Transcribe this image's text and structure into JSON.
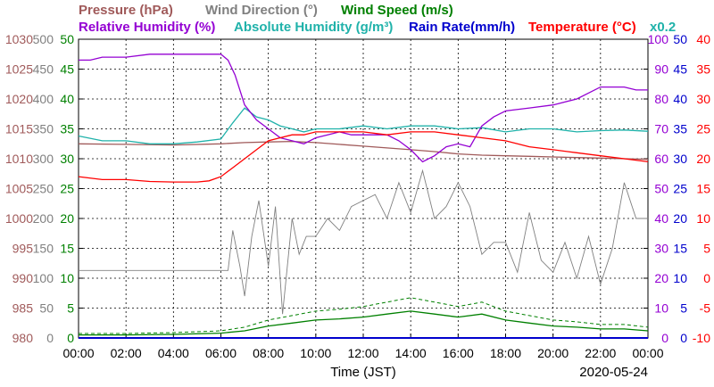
{
  "colors": {
    "pressure": "#a05a5a",
    "wind_direction": "#808080",
    "wind_speed": "#008000",
    "relative_humidity": "#9400d3",
    "absolute_humidity": "#20b2aa",
    "rain_rate": "#0000cd",
    "temperature": "#ff0000"
  },
  "legend": {
    "pressure": "Pressure (hPa)",
    "wind_direction": "Wind Direction (°)",
    "wind_speed": "Wind Speed (m/s)",
    "relative_humidity": "Relative Humidity (%)",
    "absolute_humidity": "Absolute Humidity (g/m³)",
    "rain_rate": "Rain Rate(mm/h)",
    "temperature": "Temperature (°C)",
    "scale_note": "x0.2"
  },
  "footer": {
    "xlabel": "Time (JST)",
    "date": "2020-05-24"
  },
  "chart_data": {
    "type": "line",
    "xlabel": "Time (JST)",
    "xlim": [
      0,
      24
    ],
    "x_ticks": [
      "00:00",
      "02:00",
      "04:00",
      "06:00",
      "08:00",
      "10:00",
      "12:00",
      "14:00",
      "16:00",
      "18:00",
      "20:00",
      "22:00",
      "00:00"
    ],
    "grid": true,
    "axes": {
      "pressure": {
        "range": [
          980,
          1030
        ],
        "ticks": [
          "1030",
          "1025",
          "1020",
          "1015",
          "1010",
          "1005",
          "1000",
          "995",
          "990",
          "985",
          "980"
        ]
      },
      "wind_direction": {
        "range": [
          0,
          500
        ],
        "ticks": [
          "500",
          "450",
          "400",
          "350",
          "300",
          "250",
          "200",
          "150",
          "100",
          "50",
          "0"
        ]
      },
      "wind_speed": {
        "range": [
          0,
          50
        ],
        "ticks": [
          "50",
          "45",
          "40",
          "35",
          "30",
          "25",
          "20",
          "15",
          "10",
          "5",
          "0"
        ]
      },
      "humidity": {
        "range": [
          0,
          100
        ],
        "ticks": [
          "100",
          "90",
          "80",
          "70",
          "60",
          "50",
          "40",
          "30",
          "20",
          "10",
          "0"
        ]
      },
      "rain_rate": {
        "range": [
          0,
          50
        ],
        "ticks": [
          "50",
          "45",
          "40",
          "35",
          "30",
          "25",
          "20",
          "15",
          "10",
          "5",
          "0"
        ]
      },
      "temperature": {
        "range": [
          -10,
          40
        ],
        "ticks": [
          "40",
          "35",
          "30",
          "25",
          "20",
          "15",
          "10",
          "5",
          "0",
          "-5",
          "-10"
        ]
      }
    },
    "series": [
      {
        "key": "pressure",
        "name": "Pressure (hPa)",
        "axis": "pressure",
        "x": [
          0,
          2,
          4,
          6,
          7,
          8,
          9,
          10,
          11,
          12,
          13,
          14,
          15,
          16,
          17,
          18,
          19,
          20,
          21,
          22,
          23,
          24
        ],
        "values": [
          1012.5,
          1012.4,
          1012.3,
          1012.5,
          1012.7,
          1012.8,
          1012.9,
          1012.7,
          1012.4,
          1012.1,
          1011.8,
          1011.5,
          1011.2,
          1010.8,
          1010.6,
          1010.5,
          1010.4,
          1010.3,
          1010.2,
          1010.1,
          1010.0,
          1009.9
        ]
      },
      {
        "key": "wind_direction",
        "name": "Wind Direction (°)",
        "axis": "wind_direction",
        "x": [
          0,
          2,
          4,
          6.3,
          6.5,
          6.8,
          7,
          7.3,
          7.6,
          8,
          8.3,
          8.6,
          9,
          9.3,
          9.6,
          10,
          10.5,
          11,
          11.5,
          12,
          12.5,
          13,
          13.5,
          14,
          14.5,
          15,
          15.5,
          16,
          16.5,
          17,
          17.5,
          18,
          18.5,
          19,
          19.5,
          20,
          20.5,
          21,
          21.5,
          22,
          22.5,
          23,
          23.5,
          24
        ],
        "values": [
          113,
          113,
          113,
          113,
          180,
          120,
          70,
          170,
          230,
          120,
          220,
          40,
          200,
          140,
          170,
          170,
          200,
          180,
          220,
          230,
          240,
          200,
          260,
          210,
          280,
          200,
          220,
          260,
          220,
          140,
          160,
          160,
          110,
          210,
          130,
          110,
          160,
          100,
          170,
          90,
          150,
          260,
          200,
          200
        ]
      },
      {
        "key": "wind_speed",
        "name": "Wind Speed (m/s)",
        "axis": "wind_speed",
        "x": [
          0,
          2,
          4,
          6,
          7,
          8,
          9,
          10,
          11,
          12,
          13,
          14,
          15,
          16,
          17,
          18,
          19,
          20,
          21,
          22,
          23,
          24
        ],
        "values": [
          0.5,
          0.5,
          0.6,
          0.8,
          1.2,
          2.0,
          2.5,
          3.0,
          3.2,
          3.5,
          4.0,
          4.5,
          4.0,
          3.5,
          4.0,
          3.0,
          2.5,
          2.0,
          1.8,
          1.5,
          1.5,
          1.2
        ]
      },
      {
        "key": "relative_humidity",
        "name": "Relative Humidity (%)",
        "axis": "humidity",
        "x": [
          0,
          0.5,
          1,
          2,
          3,
          4,
          5,
          6,
          6.3,
          6.6,
          7,
          7.5,
          8,
          8.5,
          9,
          9.5,
          10,
          10.5,
          11,
          11.5,
          12,
          13,
          13.5,
          14,
          14.5,
          15,
          15.5,
          16,
          16.5,
          17,
          17.5,
          18,
          19,
          20,
          21,
          22,
          23,
          23.5,
          24
        ],
        "values": [
          93,
          93,
          94,
          94,
          95,
          95,
          95,
          95,
          93,
          88,
          78,
          73,
          70,
          67,
          66,
          65,
          67,
          68,
          69,
          68,
          68,
          68,
          66,
          63,
          59,
          61,
          64,
          65,
          64,
          71,
          74,
          76,
          77,
          78,
          80,
          84,
          84,
          83,
          83
        ]
      },
      {
        "key": "absolute_humidity",
        "name": "Absolute Humidity (g/m³)",
        "axis": "wind_speed",
        "x": [
          0,
          1,
          2,
          3,
          4,
          5,
          6,
          6.5,
          7,
          7.5,
          8,
          8.5,
          9,
          9.5,
          10,
          11,
          12,
          13,
          14,
          15,
          16,
          17,
          18,
          19,
          20,
          21,
          22,
          23,
          24
        ],
        "values": [
          33.8,
          33,
          33,
          32.5,
          32.5,
          32.8,
          33.3,
          36,
          38.5,
          37,
          36.5,
          35.5,
          35,
          34.5,
          35,
          35,
          35.5,
          35,
          35.5,
          35.5,
          35,
          35.2,
          34.5,
          35,
          35,
          34.5,
          34.7,
          34.8,
          34.6
        ]
      },
      {
        "key": "temperature",
        "name": "Temperature (°C)",
        "axis": "temperature",
        "x": [
          0,
          1,
          2,
          3,
          4,
          5,
          5.5,
          6,
          6.5,
          7,
          7.5,
          8,
          8.5,
          9,
          9.5,
          10,
          11,
          12,
          13,
          14,
          15,
          16,
          17,
          18,
          19,
          20,
          21,
          22,
          23,
          24
        ],
        "values": [
          17,
          16.5,
          16.5,
          16.2,
          16.1,
          16.1,
          16.3,
          17,
          18.5,
          20,
          21.5,
          23,
          23.5,
          24,
          24,
          24.5,
          24.5,
          24.5,
          24,
          24.5,
          24.5,
          24,
          23.5,
          23,
          22,
          21.5,
          21,
          20.5,
          20,
          19.5
        ]
      },
      {
        "key": "rain_rate",
        "name": "Rain Rate(mm/h)",
        "axis": "rain_rate",
        "x": [
          0,
          24
        ],
        "values": [
          0,
          0
        ]
      }
    ]
  }
}
